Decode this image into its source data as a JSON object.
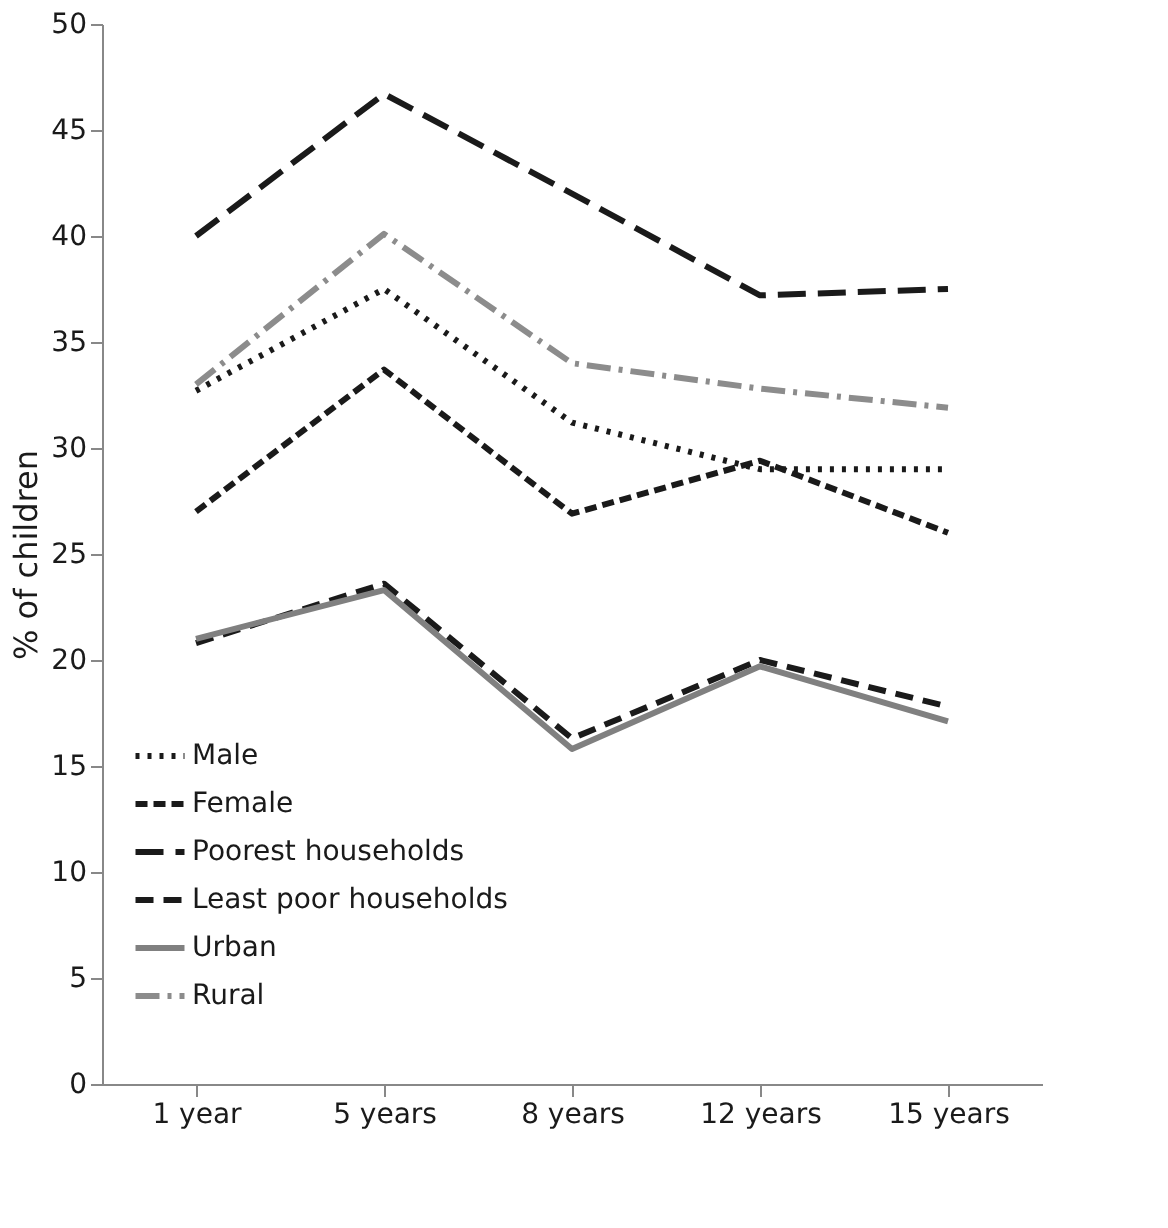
{
  "chart_data": {
    "type": "line",
    "ylabel": "% of children",
    "categories": [
      "1 year",
      "5 years",
      "8 years",
      "12 years",
      "15 years"
    ],
    "ylim": [
      0,
      50
    ],
    "yticks": [
      0,
      5,
      10,
      15,
      20,
      25,
      30,
      35,
      40,
      45,
      50
    ],
    "grid": false,
    "legend": "bottom left",
    "series": [
      {
        "name": "Male",
        "color": "#1a1a1a",
        "line_style": "dotted",
        "values": [
          32.7,
          37.5,
          31.2,
          29.0,
          29.0
        ]
      },
      {
        "name": "Female",
        "color": "#1a1a1a",
        "line_style": "dashed",
        "values": [
          27.0,
          33.7,
          26.9,
          29.4,
          26.0
        ]
      },
      {
        "name": "Poorest households",
        "color": "#1a1a1a",
        "line_style": "dashed",
        "values": [
          40.0,
          46.7,
          42.0,
          37.2,
          37.5
        ]
      },
      {
        "name": "Least poor households",
        "color": "#1a1a1a",
        "line_style": "dashed",
        "values": [
          20.8,
          23.6,
          16.3,
          20.0,
          17.8
        ]
      },
      {
        "name": "Urban",
        "color": "#808080",
        "line_style": "solid",
        "values": [
          21.0,
          23.3,
          15.8,
          19.7,
          17.1
        ]
      },
      {
        "name": "Rural",
        "color": "#8c8c8c",
        "line_style": "dashed",
        "values": [
          33.0,
          40.1,
          34.0,
          32.8,
          31.9
        ]
      }
    ]
  }
}
